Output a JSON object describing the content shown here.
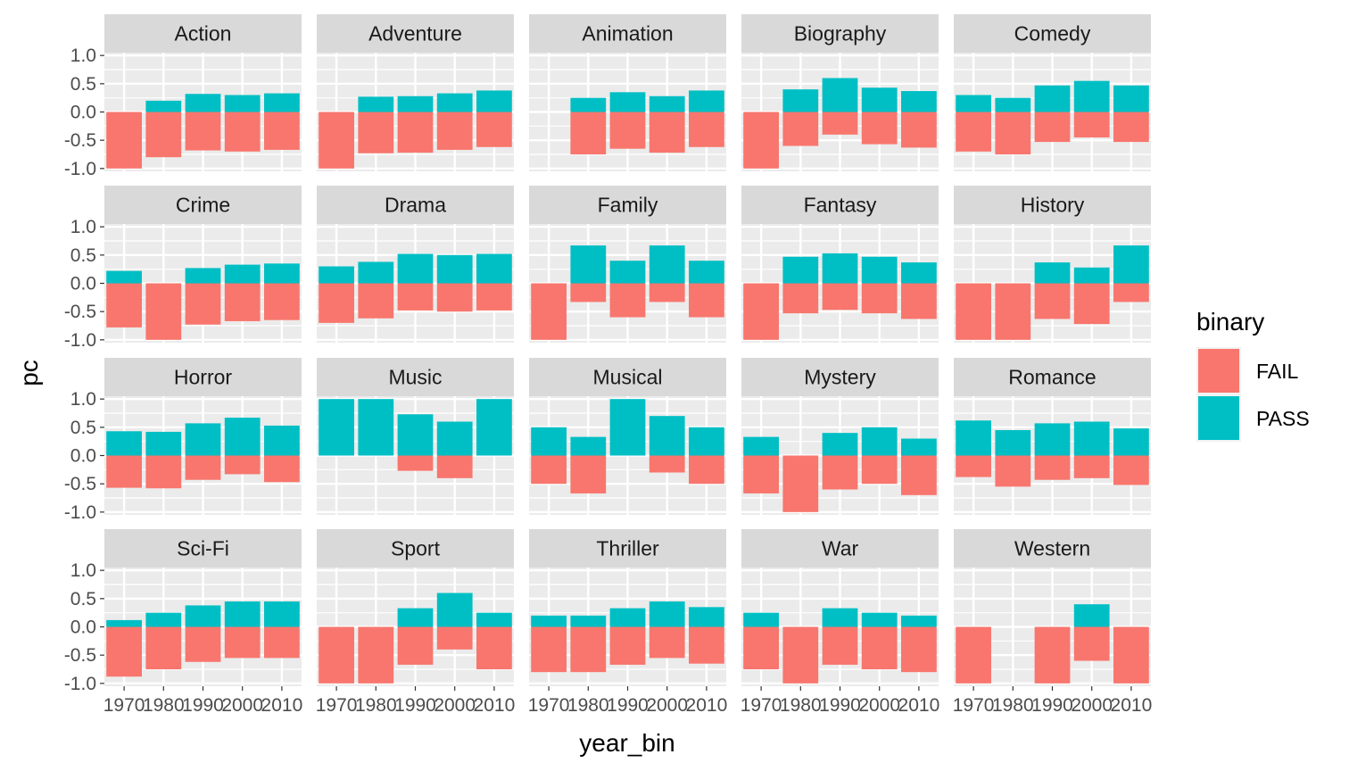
{
  "chart_data": {
    "type": "bar",
    "layout": "faceted stacked bar (diverging)",
    "xlabel": "year_bin",
    "ylabel": "pc",
    "categories": [
      "1970",
      "1980",
      "1990",
      "2000",
      "2010"
    ],
    "yticks": [
      1.0,
      0.5,
      0.0,
      -0.5,
      -1.0
    ],
    "ytick_labels": [
      "1.0",
      "0.5",
      "0.0",
      "-0.5",
      "-1.0"
    ],
    "ylim": [
      -1.05,
      1.05
    ],
    "grid": true,
    "legend": {
      "title": "binary",
      "position": "right",
      "entries": [
        {
          "label": "FAIL",
          "color": "#F8766D"
        },
        {
          "label": "PASS",
          "color": "#00BFC4"
        }
      ]
    },
    "facets": [
      {
        "name": "Action",
        "pass": [
          0,
          0.2,
          0.32,
          0.3,
          0.33
        ],
        "fail": [
          -1.0,
          -0.8,
          -0.68,
          -0.7,
          -0.67
        ]
      },
      {
        "name": "Adventure",
        "pass": [
          0,
          0.27,
          0.28,
          0.33,
          0.38
        ],
        "fail": [
          -1.0,
          -0.73,
          -0.72,
          -0.67,
          -0.62
        ]
      },
      {
        "name": "Animation",
        "pass": [
          null,
          0.25,
          0.35,
          0.28,
          0.38
        ],
        "fail": [
          null,
          -0.75,
          -0.65,
          -0.72,
          -0.62
        ]
      },
      {
        "name": "Biography",
        "pass": [
          0,
          0.4,
          0.6,
          0.43,
          0.37
        ],
        "fail": [
          -1.0,
          -0.6,
          -0.4,
          -0.57,
          -0.63
        ]
      },
      {
        "name": "Comedy",
        "pass": [
          0.3,
          0.25,
          0.47,
          0.55,
          0.47
        ],
        "fail": [
          -0.7,
          -0.75,
          -0.53,
          -0.45,
          -0.53
        ]
      },
      {
        "name": "Crime",
        "pass": [
          0.22,
          0,
          0.27,
          0.33,
          0.35
        ],
        "fail": [
          -0.78,
          -1.0,
          -0.73,
          -0.67,
          -0.65
        ]
      },
      {
        "name": "Drama",
        "pass": [
          0.3,
          0.38,
          0.52,
          0.5,
          0.52
        ],
        "fail": [
          -0.7,
          -0.62,
          -0.48,
          -0.5,
          -0.48
        ]
      },
      {
        "name": "Family",
        "pass": [
          0,
          0.67,
          0.4,
          0.67,
          0.4
        ],
        "fail": [
          -1.0,
          -0.33,
          -0.6,
          -0.33,
          -0.6
        ]
      },
      {
        "name": "Fantasy",
        "pass": [
          0,
          0.47,
          0.53,
          0.47,
          0.37
        ],
        "fail": [
          -1.0,
          -0.53,
          -0.47,
          -0.53,
          -0.63
        ]
      },
      {
        "name": "History",
        "pass": [
          0,
          0,
          0.37,
          0.28,
          0.67
        ],
        "fail": [
          -1.0,
          -1.0,
          -0.63,
          -0.72,
          -0.33
        ]
      },
      {
        "name": "Horror",
        "pass": [
          0.43,
          0.42,
          0.57,
          0.67,
          0.53
        ],
        "fail": [
          -0.57,
          -0.58,
          -0.43,
          -0.33,
          -0.47
        ]
      },
      {
        "name": "Music",
        "pass": [
          1.0,
          1.0,
          0.73,
          0.6,
          1.0
        ],
        "fail": [
          0,
          0,
          -0.27,
          -0.4,
          0
        ]
      },
      {
        "name": "Musical",
        "pass": [
          0.5,
          0.33,
          1.0,
          0.7,
          0.5
        ],
        "fail": [
          -0.5,
          -0.67,
          0,
          -0.3,
          -0.5
        ]
      },
      {
        "name": "Mystery",
        "pass": [
          0.33,
          0,
          0.4,
          0.5,
          0.3
        ],
        "fail": [
          -0.67,
          -1.0,
          -0.6,
          -0.5,
          -0.7
        ]
      },
      {
        "name": "Romance",
        "pass": [
          0.62,
          0.45,
          0.57,
          0.6,
          0.48
        ],
        "fail": [
          -0.38,
          -0.55,
          -0.43,
          -0.4,
          -0.52
        ]
      },
      {
        "name": "Sci-Fi",
        "pass": [
          0.12,
          0.25,
          0.38,
          0.45,
          0.45
        ],
        "fail": [
          -0.88,
          -0.75,
          -0.62,
          -0.55,
          -0.55
        ]
      },
      {
        "name": "Sport",
        "pass": [
          0,
          0,
          0.33,
          0.6,
          0.25
        ],
        "fail": [
          -1.0,
          -1.0,
          -0.67,
          -0.4,
          -0.75
        ]
      },
      {
        "name": "Thriller",
        "pass": [
          0.2,
          0.2,
          0.33,
          0.45,
          0.35
        ],
        "fail": [
          -0.8,
          -0.8,
          -0.67,
          -0.55,
          -0.65
        ]
      },
      {
        "name": "War",
        "pass": [
          0.25,
          0,
          0.33,
          0.25,
          0.2
        ],
        "fail": [
          -0.75,
          -1.0,
          -0.67,
          -0.75,
          -0.8
        ]
      },
      {
        "name": "Western",
        "pass": [
          0,
          null,
          0,
          0.4,
          0
        ],
        "fail": [
          -1.0,
          null,
          -1.0,
          -0.6,
          -1.0
        ]
      }
    ]
  },
  "colors": {
    "panel_bg": "#EBEBEB",
    "strip_bg": "#D9D9D9",
    "grid": "#FFFFFF",
    "fail": "#F8766D",
    "pass": "#00BFC4"
  }
}
